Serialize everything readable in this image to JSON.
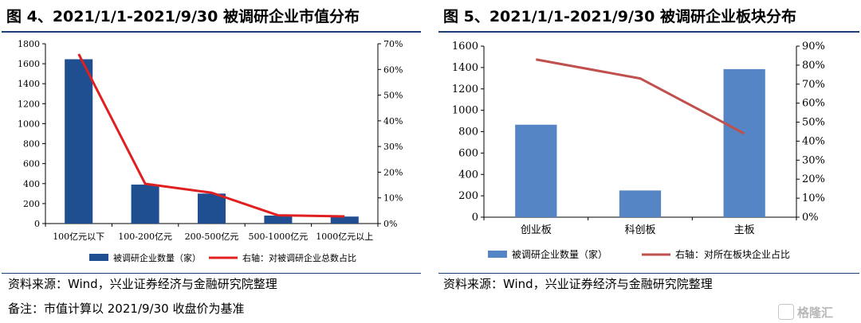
{
  "left": {
    "title": "图 4、2021/1/1-2021/9/30 被调研企业市值分布",
    "source": "资料来源：Wind，兴业证券经济与金融研究院整理",
    "note": "备注：市值计算以 2021/9/30 收盘价为基准"
  },
  "right": {
    "title": "图 5、2021/1/1-2021/9/30 被调研企业板块分布",
    "source": "资料来源：Wind，兴业证券经济与金融研究院整理"
  },
  "watermark": {
    "text": "格隆汇",
    "icon": "gelonghui-logo-icon"
  },
  "colors": {
    "left_bar": "#1f4e91",
    "right_bar": "#5585c4",
    "line": "#c0504d",
    "left_line": "#e02020"
  },
  "chart_data": [
    {
      "type": "bar",
      "categories": [
        "100亿元以下",
        "100-200亿元",
        "200-500亿元",
        "500-1000亿元",
        "1000亿元以上"
      ],
      "series": [
        {
          "name": "被调研企业数量（家）",
          "type": "bar",
          "axis": "left",
          "values": [
            1645,
            390,
            300,
            80,
            70
          ]
        },
        {
          "name": "右轴：对被调研企业总数占比",
          "type": "line",
          "axis": "right",
          "values": [
            0.66,
            0.155,
            0.12,
            0.032,
            0.028
          ]
        }
      ],
      "y_left": {
        "min": 0,
        "max": 1800,
        "ticks": [
          "0",
          "200",
          "400",
          "600",
          "800",
          "1000",
          "1200",
          "1400",
          "1600",
          "1800"
        ]
      },
      "y_right": {
        "min": 0,
        "max": 0.7,
        "ticks": [
          "0%",
          "10%",
          "20%",
          "30%",
          "40%",
          "50%",
          "60%",
          "70%"
        ]
      },
      "legend": "bottom",
      "grid": false
    },
    {
      "type": "bar",
      "categories": [
        "创业板",
        "科创板",
        "主板"
      ],
      "series": [
        {
          "name": "被调研企业数量（家）",
          "type": "bar",
          "axis": "left",
          "values": [
            865,
            250,
            1385
          ]
        },
        {
          "name": "右轴：对所在板块企业占比",
          "type": "line",
          "axis": "right",
          "values": [
            0.83,
            0.73,
            0.44
          ]
        }
      ],
      "y_left": {
        "min": 0,
        "max": 1600,
        "ticks": [
          "0",
          "200",
          "400",
          "600",
          "800",
          "1000",
          "1200",
          "1400",
          "1600"
        ]
      },
      "y_right": {
        "min": 0,
        "max": 0.9,
        "ticks": [
          "0%",
          "10%",
          "20%",
          "30%",
          "40%",
          "50%",
          "60%",
          "70%",
          "80%",
          "90%"
        ]
      },
      "legend": "bottom",
      "grid": false
    }
  ]
}
